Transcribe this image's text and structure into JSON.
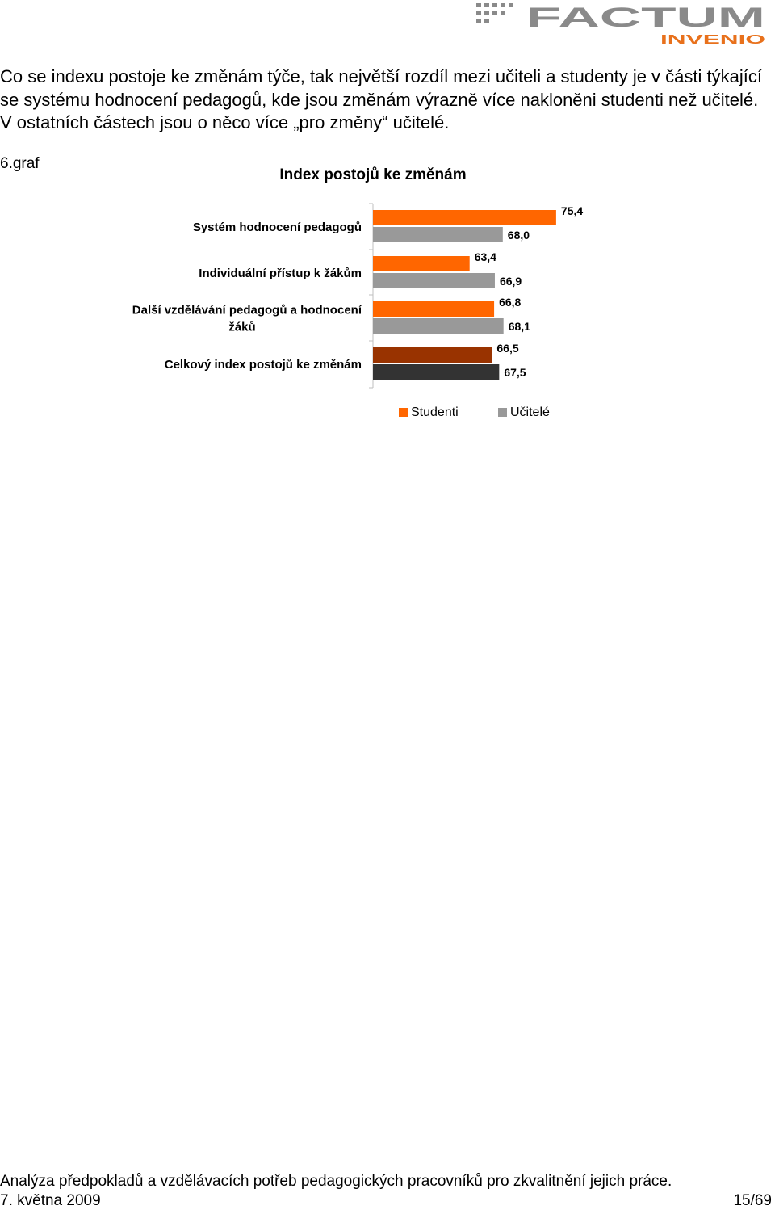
{
  "header": {
    "logo_main": "FACTUM",
    "logo_sub": "INVENIO"
  },
  "intro_text": "Co se indexu postoje ke změnám týče, tak největší rozdíl mezi učiteli a studenty je v části týkající se systému hodnocení pedagogů, kde jsou změnám výrazně více nakloněni studenti než učitelé. V ostatních částech jsou o něco více „pro změny“ učitelé.",
  "graf_label": "6.graf",
  "chart_data": {
    "type": "bar",
    "orientation": "horizontal",
    "title": "Index postojů ke změnám",
    "categories": [
      [
        "Systém hodnocení pedagogů"
      ],
      [
        "Individuální přístup k žákům"
      ],
      [
        "Další vzdělávání pedagogů a hodnocení",
        "žáků"
      ],
      [
        "Celkový index postojů ke změnám"
      ]
    ],
    "series": [
      {
        "name": "Studenti",
        "values": [
          75.4,
          63.4,
          66.8,
          66.5
        ],
        "labels": [
          "75,4",
          "63,4",
          "66,8",
          "66,5"
        ]
      },
      {
        "name": "Učitelé",
        "values": [
          68.0,
          66.9,
          68.1,
          67.5
        ],
        "labels": [
          "68,0",
          "66,9",
          "68,1",
          "67,5"
        ]
      }
    ],
    "colors": {
      "studenti": "#ff6600",
      "ucitele": "#999999",
      "total_studenti": "#993300",
      "total_ucitele": "#333333"
    },
    "xlim": [
      50,
      80
    ],
    "legend": "bottom",
    "grid": false
  },
  "footer": {
    "title": "Analýza předpokladů a vzdělávacích potřeb pedagogických pracovníků pro zkvalitnění jejich práce.",
    "date": "7. května 2009",
    "page": "15/69"
  }
}
